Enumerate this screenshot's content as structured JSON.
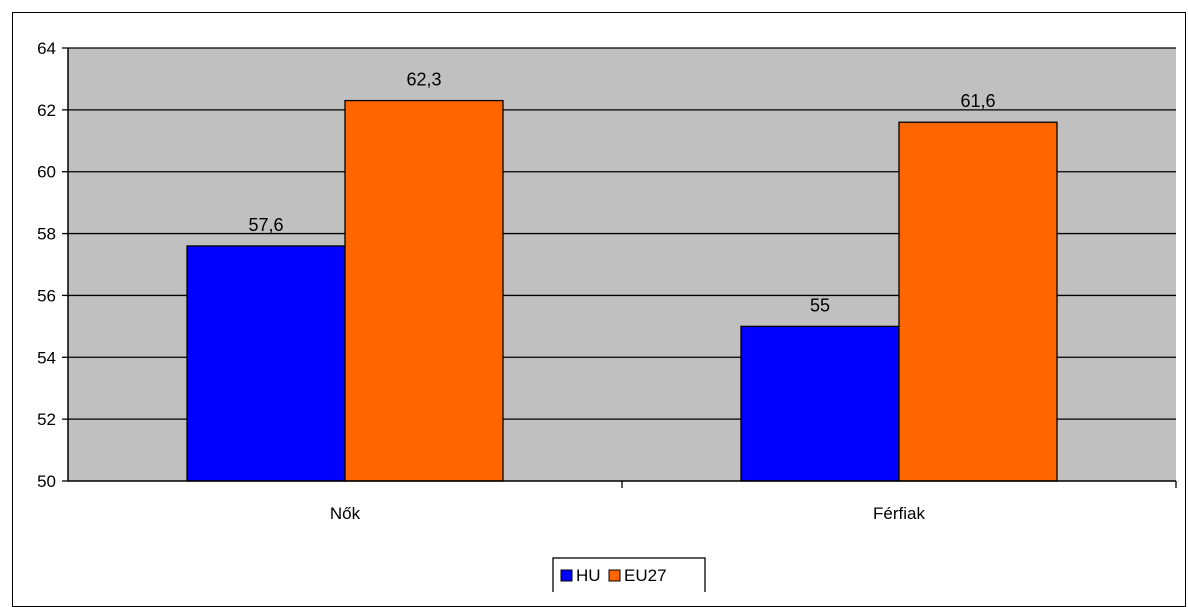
{
  "chart_data": {
    "type": "bar",
    "categories": [
      "Nők",
      "Férfiak"
    ],
    "series": [
      {
        "name": "HU",
        "values": [
          57.6,
          55
        ],
        "labels": [
          "57,6",
          "55"
        ],
        "color": "#0000ff"
      },
      {
        "name": "EU27",
        "values": [
          62.3,
          61.6
        ],
        "labels": [
          "62,3",
          "61,6"
        ],
        "color": "#ff6600"
      }
    ],
    "ylim": [
      50,
      64
    ],
    "yticks": [
      50,
      52,
      54,
      56,
      58,
      60,
      62,
      64
    ],
    "grid": true,
    "plot_background": "#c0c0c0",
    "legend": "bottom-center"
  }
}
